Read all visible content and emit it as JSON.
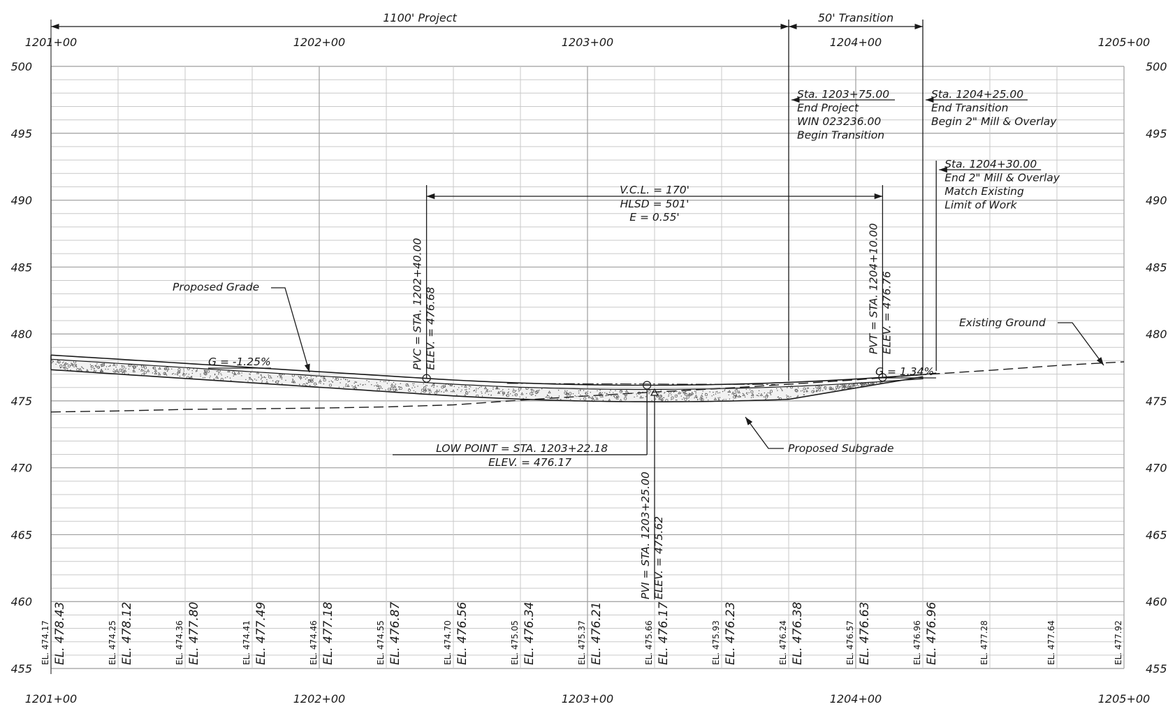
{
  "sheet": {
    "station_start": 120100,
    "station_end": 120500,
    "elevation_min": 455,
    "elevation_max": 500
  },
  "station_labels": [
    {
      "sta": 120100,
      "label": "1201+00"
    },
    {
      "sta": 120200,
      "label": "1202+00"
    },
    {
      "sta": 120300,
      "label": "1203+00"
    },
    {
      "sta": 120400,
      "label": "1204+00"
    },
    {
      "sta": 120500,
      "label": "1205+00"
    }
  ],
  "elevation_labels": [
    "455",
    "460",
    "465",
    "470",
    "475",
    "480",
    "485",
    "490",
    "495",
    "500"
  ],
  "dimensions": {
    "project": {
      "label": "1100' Project",
      "from": 120100,
      "to": 120375
    },
    "transition": {
      "label": "50' Transition",
      "from": 120375,
      "to": 120425
    }
  },
  "curve": {
    "pvc": {
      "sta": 120240,
      "elev": 476.68,
      "label": "PVC = STA. 1202+40.00",
      "elev_label": "ELEV. = 476.68"
    },
    "pvi": {
      "sta": 120325,
      "elev": 475.62,
      "label": "PVI = STA. 1203+25.00",
      "elev_label": "ELEV. = 475.62"
    },
    "pvt": {
      "sta": 120410,
      "elev": 476.76,
      "label": "PVT = STA. 1204+10.00",
      "elev_label": "ELEV. = 476.76"
    },
    "low_point": {
      "sta": 120322.18,
      "elev": 476.17,
      "label": "LOW  POINT = STA. 1203+22.18",
      "elev_label": "ELEV. = 476.17"
    },
    "vcl_label": "V.C.L. = 170'",
    "hlsd_label": "HLSD  = 501'",
    "e_label": "E   = 0.55'",
    "grade_in": "G  = -1.25%",
    "grade_out": "G  = 1.34%"
  },
  "notes": {
    "end_project": [
      "Sta. 1203+75.00",
      "End  Project",
      "WIN  023236.00",
      "Begin  Transition"
    ],
    "end_transition": [
      "Sta. 1204+25.00",
      "End  Transition",
      "Begin  2\" Mill  &  Overlay"
    ],
    "end_mill": [
      "Sta. 1204+30.00",
      "End  2\" Mill  &  Overlay",
      "Match  Existing",
      "Limit of  Work"
    ]
  },
  "callouts": {
    "proposed_grade": "Proposed  Grade",
    "existing_ground": "Existing  Ground",
    "proposed_subgrade": "Proposed  Subgrade"
  },
  "elevation_table": [
    {
      "sta": 120100,
      "existing": "EL. 474.17",
      "proposed": "EL. 478.43"
    },
    {
      "sta": 120125,
      "existing": "EL. 474.25",
      "proposed": "EL. 478.12"
    },
    {
      "sta": 120150,
      "existing": "EL. 474.36",
      "proposed": "EL. 477.80"
    },
    {
      "sta": 120175,
      "existing": "EL. 474.41",
      "proposed": "EL. 477.49"
    },
    {
      "sta": 120200,
      "existing": "EL. 474.46",
      "proposed": "EL. 477.18"
    },
    {
      "sta": 120225,
      "existing": "EL. 474.55",
      "proposed": "EL. 476.87"
    },
    {
      "sta": 120250,
      "existing": "EL. 474.70",
      "proposed": "EL. 476.56"
    },
    {
      "sta": 120275,
      "existing": "EL. 475.05",
      "proposed": "EL. 476.34"
    },
    {
      "sta": 120300,
      "existing": "EL. 475.37",
      "proposed": "EL. 476.21"
    },
    {
      "sta": 120325,
      "existing": "EL. 475.66",
      "proposed": "EL. 476.17"
    },
    {
      "sta": 120350,
      "existing": "EL. 475.93",
      "proposed": "EL. 476.23"
    },
    {
      "sta": 120375,
      "existing": "EL. 476.24",
      "proposed": "EL. 476.38"
    },
    {
      "sta": 120400,
      "existing": "EL. 476.57",
      "proposed": "EL. 476.63"
    },
    {
      "sta": 120425,
      "existing": "EL. 476.96",
      "proposed": "EL. 476.96"
    },
    {
      "sta": 120450,
      "existing": "EL. 477.28",
      "proposed": ""
    },
    {
      "sta": 120475,
      "existing": "EL. 477.64",
      "proposed": ""
    },
    {
      "sta": 120500,
      "existing": "EL. 477.92",
      "proposed": ""
    }
  ],
  "existing_ground_profile": [
    {
      "sta": 120100,
      "elev": 474.17
    },
    {
      "sta": 120125,
      "elev": 474.25
    },
    {
      "sta": 120150,
      "elev": 474.36
    },
    {
      "sta": 120175,
      "elev": 474.41
    },
    {
      "sta": 120200,
      "elev": 474.46
    },
    {
      "sta": 120225,
      "elev": 474.55
    },
    {
      "sta": 120250,
      "elev": 474.7
    },
    {
      "sta": 120275,
      "elev": 475.05
    },
    {
      "sta": 120300,
      "elev": 475.37
    },
    {
      "sta": 120325,
      "elev": 475.66
    },
    {
      "sta": 120350,
      "elev": 475.93
    },
    {
      "sta": 120375,
      "elev": 476.24
    },
    {
      "sta": 120400,
      "elev": 476.57
    },
    {
      "sta": 120425,
      "elev": 476.96
    },
    {
      "sta": 120450,
      "elev": 477.28
    },
    {
      "sta": 120475,
      "elev": 477.64
    },
    {
      "sta": 120500,
      "elev": 477.92
    }
  ]
}
